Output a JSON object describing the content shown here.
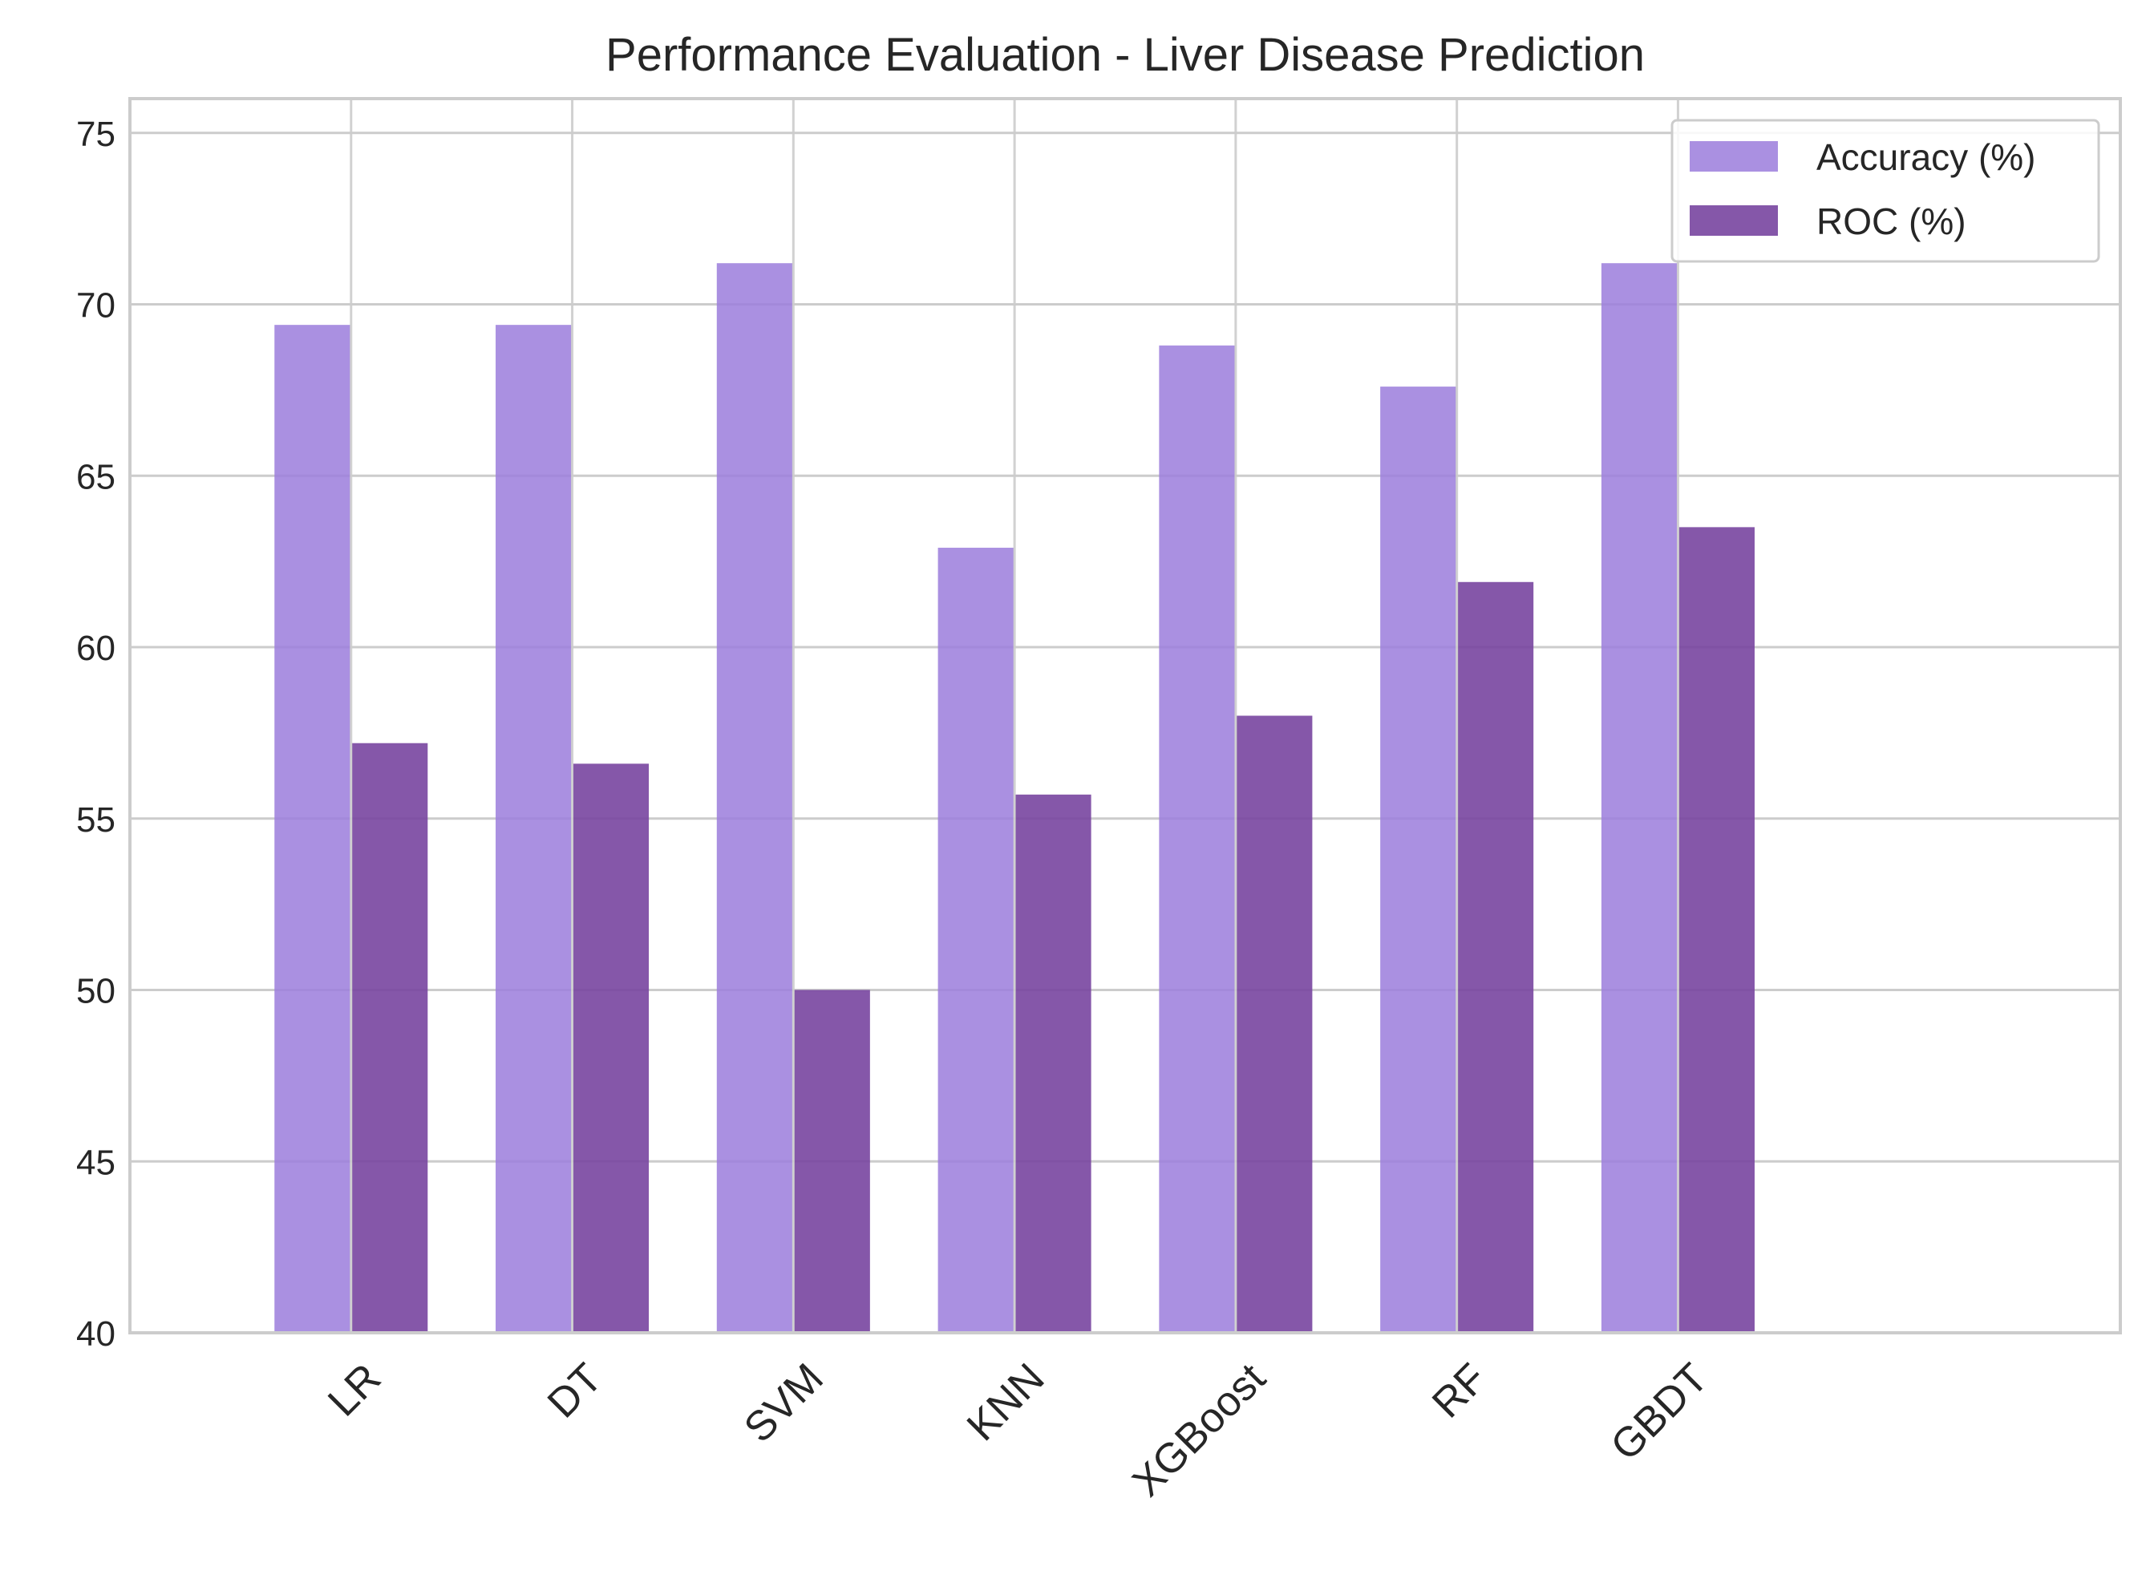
{
  "chart_data": {
    "type": "bar",
    "title": "Performance Evaluation - Liver Disease Prediction",
    "xlabel": "",
    "ylabel": "",
    "categories": [
      "LR",
      "DT",
      "SVM",
      "KNN",
      "XGBoost",
      "RF",
      "GBDT"
    ],
    "series": [
      {
        "name": "Accuracy (%)",
        "color": "#9b7ddc",
        "values": [
          69.4,
          69.4,
          71.2,
          62.9,
          68.8,
          67.6,
          71.2
        ]
      },
      {
        "name": "ROC (%)",
        "color": "#7845a0",
        "values": [
          57.2,
          56.6,
          50.0,
          55.7,
          58.0,
          61.9,
          63.5
        ]
      }
    ],
    "ylim": [
      40,
      76
    ],
    "yticks": [
      40,
      45,
      50,
      55,
      60,
      65,
      70,
      75
    ],
    "xlim": [
      -1,
      8
    ],
    "grid": true,
    "legend_position": "top-right"
  }
}
